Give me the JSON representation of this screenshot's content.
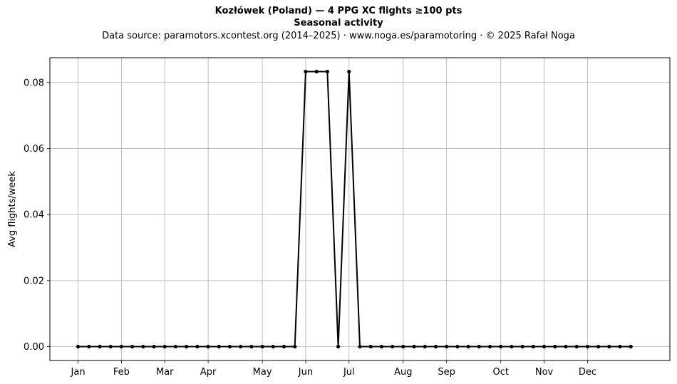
{
  "header": {
    "title": "Kozłówek (Poland)  —  4 PPG XC flights ≥100 pts",
    "subtitle": "Seasonal activity",
    "source": "Data source: paramotors.xcontest.org (2014–2025)  ·  www.noga.es/paramotoring  ·  © 2025 Rafał Noga"
  },
  "chart_data": {
    "type": "line",
    "title": "Kozłówek (Poland)  —  4 PPG XC flights ≥100 pts",
    "subtitle": "Seasonal activity",
    "xlabel": "",
    "ylabel": "Avg flights/week",
    "x_unit": "week of year",
    "xlim": [
      -2.6,
      54.6
    ],
    "ylim": [
      -0.0042,
      0.0875
    ],
    "grid": true,
    "color": "#000000",
    "x_ticks": [
      {
        "label": "Jan",
        "x": 0
      },
      {
        "label": "Feb",
        "x": 4
      },
      {
        "label": "Mar",
        "x": 8
      },
      {
        "label": "Apr",
        "x": 12
      },
      {
        "label": "May",
        "x": 17
      },
      {
        "label": "Jun",
        "x": 21
      },
      {
        "label": "Jul",
        "x": 25
      },
      {
        "label": "Aug",
        "x": 30
      },
      {
        "label": "Sep",
        "x": 34
      },
      {
        "label": "Oct",
        "x": 39
      },
      {
        "label": "Nov",
        "x": 43
      },
      {
        "label": "Dec",
        "x": 47
      }
    ],
    "y_ticks": [
      {
        "label": "0.00",
        "y": 0.0
      },
      {
        "label": "0.02",
        "y": 0.02
      },
      {
        "label": "0.04",
        "y": 0.04
      },
      {
        "label": "0.06",
        "y": 0.06
      },
      {
        "label": "0.08",
        "y": 0.08
      }
    ],
    "series": [
      {
        "x": [
          0,
          1,
          2,
          3,
          4,
          5,
          6,
          7,
          8,
          9,
          10,
          11,
          12,
          13,
          14,
          15,
          16,
          17,
          18,
          19,
          20,
          21,
          22,
          23,
          24,
          25,
          26,
          27,
          28,
          29,
          30,
          31,
          32,
          33,
          34,
          35,
          36,
          37,
          38,
          39,
          40,
          41,
          42,
          43,
          44,
          45,
          46,
          47,
          48,
          49,
          50,
          51
        ],
        "values": [
          0,
          0,
          0,
          0,
          0,
          0,
          0,
          0,
          0,
          0,
          0,
          0,
          0,
          0,
          0,
          0,
          0,
          0,
          0,
          0,
          0,
          0.0833,
          0.0833,
          0.0833,
          0,
          0.0833,
          0,
          0,
          0,
          0,
          0,
          0,
          0,
          0,
          0,
          0,
          0,
          0,
          0,
          0,
          0,
          0,
          0,
          0,
          0,
          0,
          0,
          0,
          0,
          0,
          0,
          0
        ]
      }
    ]
  }
}
